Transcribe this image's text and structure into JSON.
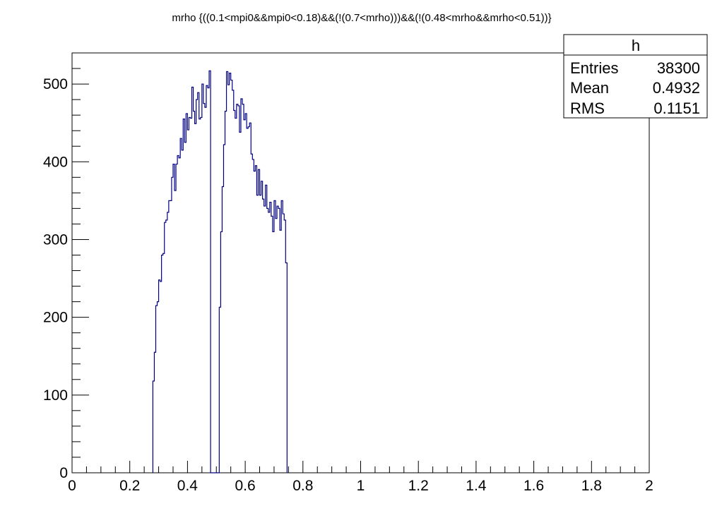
{
  "chart_data": {
    "type": "histogram",
    "title": "mrho {((0.1<mpi0&&mpi0<0.18)&&(!(0.7<mrho)))&&(!(0.48<mrho&&mrho<0.51))}",
    "xlabel": "",
    "ylabel": "",
    "xlim": [
      0,
      2
    ],
    "ylim": [
      0,
      540
    ],
    "x_ticks": [
      0,
      0.2,
      0.4,
      0.6,
      0.8,
      1,
      1.2,
      1.4,
      1.6,
      1.8,
      2
    ],
    "x_tick_labels": [
      "0",
      "0.2",
      "0.4",
      "0.6",
      "0.8",
      "1",
      "1.2",
      "1.4",
      "1.6",
      "1.8",
      "2"
    ],
    "y_ticks": [
      0,
      100,
      200,
      300,
      400,
      500
    ],
    "y_tick_labels": [
      "0",
      "100",
      "200",
      "300",
      "400",
      "500"
    ],
    "grid": false,
    "line_color": "#000080",
    "bin_width": 0.005,
    "x_start": 0.28,
    "values": [
      118,
      155,
      215,
      220,
      248,
      246,
      280,
      282,
      322,
      325,
      335,
      350,
      350,
      380,
      397,
      363,
      397,
      408,
      405,
      430,
      415,
      455,
      425,
      462,
      441,
      457,
      456,
      496,
      465,
      449,
      480,
      489,
      455,
      457,
      500,
      475,
      470,
      498,
      495,
      517,
      0,
      0,
      0,
      0,
      0,
      0,
      213,
      310,
      368,
      422,
      465,
      516,
      499,
      514,
      505,
      492,
      466,
      456,
      474,
      472,
      438,
      481,
      474,
      454,
      462,
      443,
      445,
      450,
      410,
      403,
      388,
      395,
      357,
      390,
      357,
      375,
      352,
      343,
      370,
      340,
      335,
      348,
      330,
      310,
      350,
      327,
      343,
      340,
      312,
      350,
      333,
      325,
      270
    ],
    "stats_box": {
      "name": "h",
      "rows": [
        {
          "label": "Entries",
          "value": "38300"
        },
        {
          "label": "Mean",
          "value": "0.4932"
        },
        {
          "label": "RMS",
          "value": "0.1151"
        }
      ]
    }
  }
}
